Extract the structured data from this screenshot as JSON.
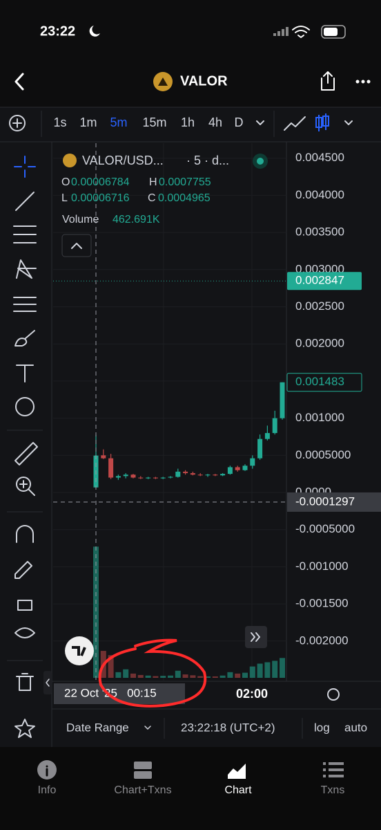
{
  "status_bar": {
    "time": "23:22"
  },
  "header": {
    "title": "VALOR"
  },
  "toolbar": {
    "intervals": [
      "1s",
      "1m",
      "5m",
      "15m",
      "1h",
      "4h",
      "D"
    ],
    "active_interval": 2
  },
  "legend": {
    "symbol": "VALOR/USD...",
    "details": "· 5 · d...",
    "open_label": "O",
    "high_label": "H",
    "low_label": "L",
    "close_label": "C",
    "volume_label": "Volume",
    "volume_value": "462.691K"
  },
  "chart": {
    "type": "candlestick",
    "ylim": [
      -0.002542,
      0.004702
    ],
    "volume_lim": [
      0,
      500
    ],
    "yticks": [
      {
        "value": 0.0045,
        "label": "0.004500"
      },
      {
        "value": 0.004,
        "label": "0.004000"
      },
      {
        "value": 0.0035,
        "label": "0.003500"
      },
      {
        "value": 0.003,
        "label": "0.003000"
      },
      {
        "value": 0.0025,
        "label": "0.002500"
      },
      {
        "value": 0.002,
        "label": "0.002000"
      },
      {
        "value": 0.0015,
        "label": "0.001500"
      },
      {
        "value": 0.001,
        "label": "0.001000"
      },
      {
        "value": 0.0005,
        "label": "0.0005000"
      },
      {
        "value": 0,
        "label": "0.0000"
      },
      {
        "value": -0.0005,
        "label": "-0.0005000"
      },
      {
        "value": -0.001,
        "label": "-0.001000"
      },
      {
        "value": -0.0015,
        "label": "-0.001500"
      },
      {
        "value": -0.002,
        "label": "-0.002000"
      }
    ],
    "up_color": "#22ab94",
    "down_color": "#c04848",
    "current_price": 0.002847,
    "crosshair_price": -0.0001297,
    "crosshair_time": "22 Oct '25   00:15",
    "time_labels": [
      "02:00"
    ],
    "candles": [
      {
        "open": 6.784e-05,
        "high": 0.0007755,
        "low": 6.716e-05,
        "close": 0.0004965,
        "volume": 462.691
      },
      {
        "open": 0.0005,
        "high": 0.00058,
        "low": 0.00045,
        "close": 0.00046,
        "volume": 95
      },
      {
        "open": 0.00046,
        "high": 0.00052,
        "low": 0.00018,
        "close": 0.0002,
        "volume": 80
      },
      {
        "open": 0.0002,
        "high": 0.00024,
        "low": 0.00017,
        "close": 0.00022,
        "volume": 20
      },
      {
        "open": 0.00022,
        "high": 0.00026,
        "low": 0.00019,
        "close": 0.00024,
        "volume": 30
      },
      {
        "open": 0.00024,
        "high": 0.00025,
        "low": 0.00019,
        "close": 0.0002,
        "volume": 15
      },
      {
        "open": 0.0002,
        "high": 0.00022,
        "low": 0.00018,
        "close": 0.00019,
        "volume": 10
      },
      {
        "open": 0.00019,
        "high": 0.00021,
        "low": 0.00018,
        "close": 0.0002,
        "volume": 8
      },
      {
        "open": 0.0002,
        "high": 0.00021,
        "low": 0.00018,
        "close": 0.00019,
        "volume": 6
      },
      {
        "open": 0.00019,
        "high": 0.00021,
        "low": 0.00018,
        "close": 0.0002,
        "volume": 7
      },
      {
        "open": 0.0002,
        "high": 0.00022,
        "low": 0.00019,
        "close": 0.00021,
        "volume": 8
      },
      {
        "open": 0.00021,
        "high": 0.00032,
        "low": 0.0002,
        "close": 0.00028,
        "volume": 25
      },
      {
        "open": 0.00028,
        "high": 0.0003,
        "low": 0.00024,
        "close": 0.00026,
        "volume": 12
      },
      {
        "open": 0.00026,
        "high": 0.00028,
        "low": 0.00023,
        "close": 0.00024,
        "volume": 9
      },
      {
        "open": 0.00024,
        "high": 0.00026,
        "low": 0.00022,
        "close": 0.00023,
        "volume": 6
      },
      {
        "open": 0.00023,
        "high": 0.00025,
        "low": 0.00021,
        "close": 0.00024,
        "volume": 5
      },
      {
        "open": 0.00024,
        "high": 0.00025,
        "low": 0.00022,
        "close": 0.00023,
        "volume": 5
      },
      {
        "open": 0.00023,
        "high": 0.00026,
        "low": 0.00022,
        "close": 0.00025,
        "volume": 8
      },
      {
        "open": 0.00025,
        "high": 0.00036,
        "low": 0.00024,
        "close": 0.00034,
        "volume": 20
      },
      {
        "open": 0.00034,
        "high": 0.00036,
        "low": 0.00028,
        "close": 0.0003,
        "volume": 15
      },
      {
        "open": 0.0003,
        "high": 0.00038,
        "low": 0.00029,
        "close": 0.00036,
        "volume": 18
      },
      {
        "open": 0.00036,
        "high": 0.0005,
        "low": 0.00032,
        "close": 0.00046,
        "volume": 40
      },
      {
        "open": 0.00046,
        "high": 0.00078,
        "low": 0.00044,
        "close": 0.00072,
        "volume": 50
      },
      {
        "open": 0.00072,
        "high": 0.0009,
        "low": 0.0007,
        "close": 0.0008,
        "volume": 55
      },
      {
        "open": 0.0008,
        "high": 0.0011,
        "low": 0.00078,
        "close": 0.001,
        "volume": 60
      },
      {
        "open": 0.001,
        "high": 0.001483,
        "low": 0.00098,
        "close": 0.001483,
        "volume": 70
      }
    ]
  },
  "footer": {
    "date_range": "Date Range",
    "clock": "23:22:18 (UTC+2)",
    "log": "log",
    "auto": "auto"
  },
  "tab_bar": {
    "tabs": [
      "Info",
      "Chart+Txns",
      "Chart",
      "Txns"
    ],
    "active": 2
  }
}
